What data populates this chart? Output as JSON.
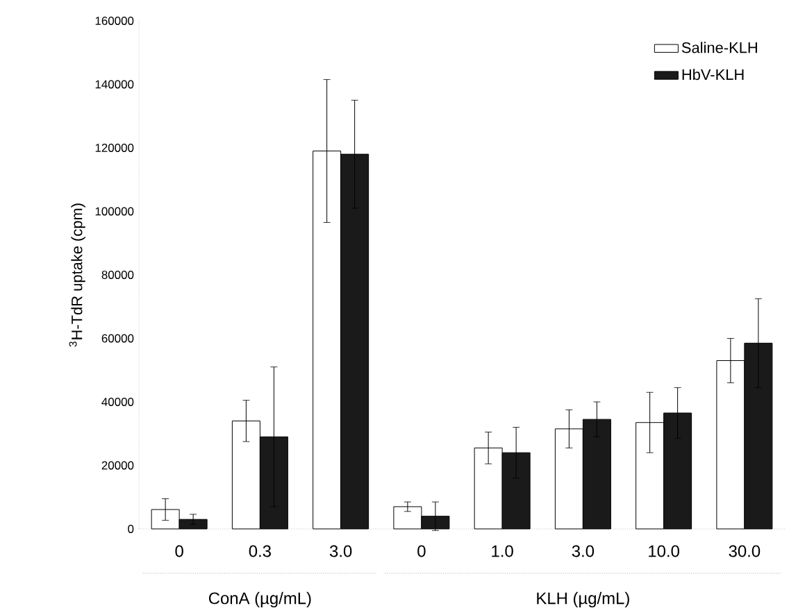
{
  "chart_data": {
    "type": "bar",
    "ylabel": "$^{3}$H-TdR uptake (cpm)",
    "categories": [
      "0",
      "0.3",
      "3.0",
      "0",
      "1.0",
      "3.0",
      "10.0",
      "30.0"
    ],
    "series": [
      {
        "name": "Saline-KLH",
        "color": "#ffffff",
        "values": [
          6100,
          34000,
          119000,
          7000,
          25500,
          31500,
          33500,
          53000
        ],
        "errors": [
          3400,
          6500,
          22500,
          1500,
          5000,
          6000,
          9500,
          7000
        ]
      },
      {
        "name": "HbV-KLH",
        "color": "#1a1a1a",
        "values": [
          3000,
          29000,
          118000,
          4000,
          24000,
          34500,
          36500,
          58500
        ],
        "errors": [
          1600,
          22000,
          17000,
          4500,
          8000,
          5500,
          8000,
          14000
        ]
      }
    ],
    "ylim": [
      0,
      160000
    ],
    "yticks": [
      0,
      20000,
      40000,
      60000,
      80000,
      100000,
      120000,
      140000,
      160000
    ],
    "legend": "top right",
    "grid": false,
    "annotations": [
      "ConA (µg/mL)",
      "KLH (µg/mL)"
    ]
  }
}
